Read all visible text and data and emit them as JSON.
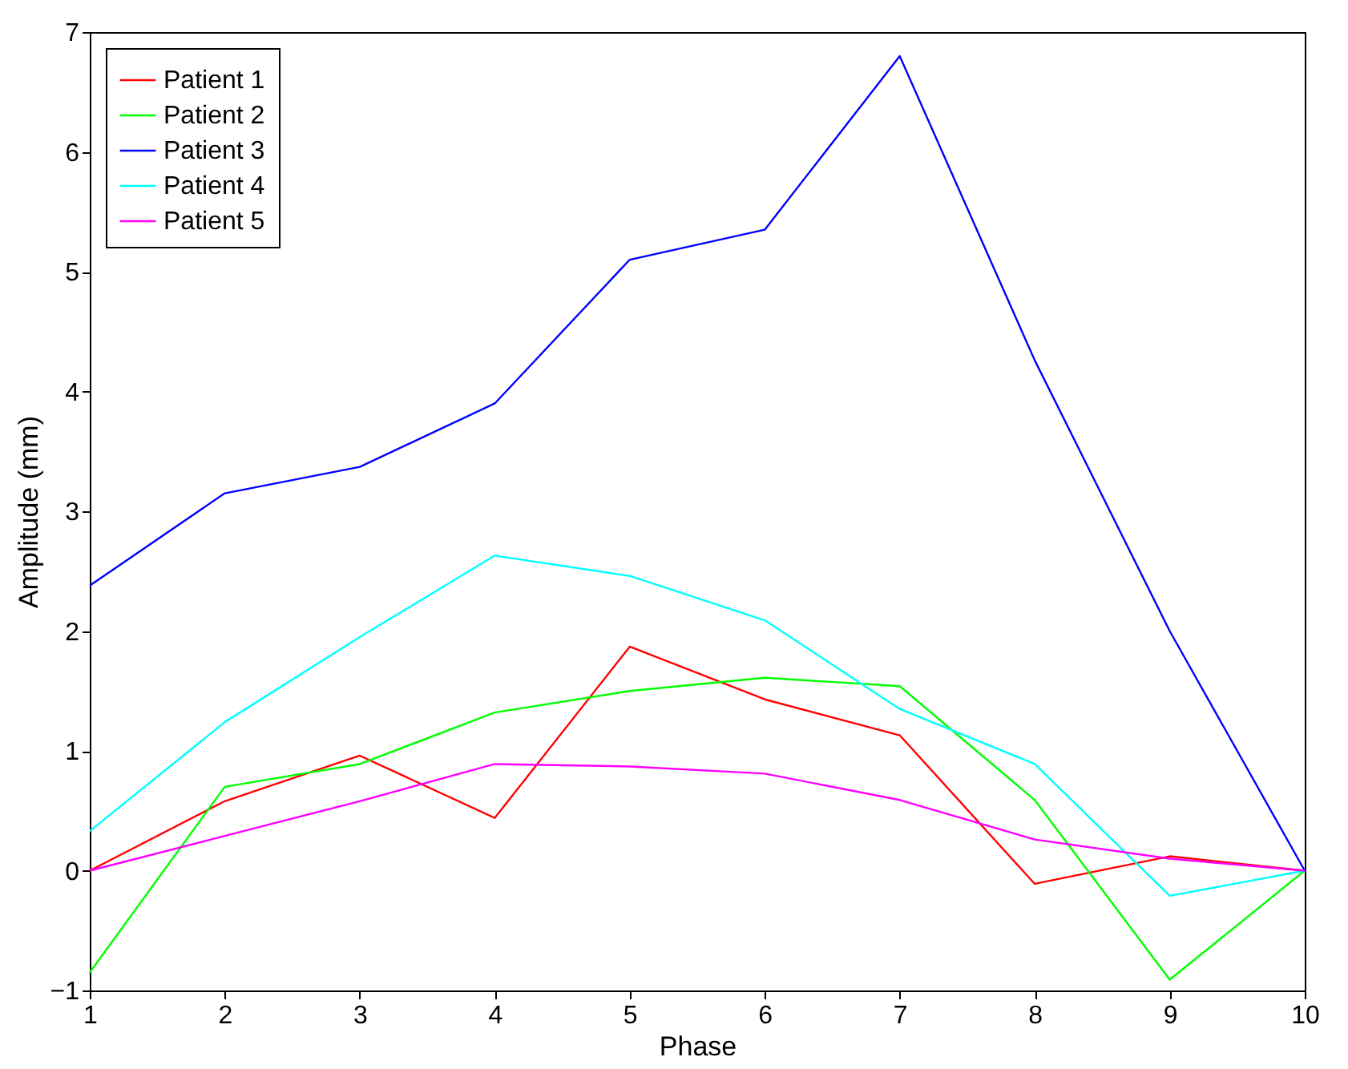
{
  "chart_data": {
    "type": "line",
    "xlabel": "Phase",
    "ylabel": "Amplitude (mm)",
    "x": [
      1,
      2,
      3,
      4,
      5,
      6,
      7,
      8,
      9,
      10
    ],
    "xlim": [
      1,
      10
    ],
    "xticks": [
      1,
      2,
      3,
      4,
      5,
      6,
      7,
      8,
      9,
      10
    ],
    "ylim": [
      -1,
      7
    ],
    "yticks": [
      -1,
      0,
      1,
      2,
      3,
      4,
      5,
      6,
      7
    ],
    "grid": false,
    "legend": "top left",
    "marker": "none",
    "line_style": "solid",
    "series": [
      {
        "name": "Patient 1",
        "color": "#ff0000",
        "values": [
          0,
          0.58,
          0.96,
          0.44,
          1.87,
          1.43,
          1.13,
          -0.11,
          0.12,
          0
        ]
      },
      {
        "name": "Patient 2",
        "color": "#00ff00",
        "values": [
          -0.85,
          0.7,
          0.89,
          1.32,
          1.5,
          1.61,
          1.54,
          0.59,
          -0.91,
          0
        ]
      },
      {
        "name": "Patient 3",
        "color": "#0000ff",
        "values": [
          2.38,
          3.15,
          3.37,
          3.9,
          5.1,
          5.35,
          6.8,
          4.26,
          2.0,
          0
        ]
      },
      {
        "name": "Patient 4",
        "color": "#00ffff",
        "values": [
          0.33,
          1.24,
          1.95,
          2.63,
          2.46,
          2.09,
          1.35,
          0.89,
          -0.21,
          0
        ]
      },
      {
        "name": "Patient 5",
        "color": "#ff00ff",
        "values": [
          0,
          0.29,
          0.58,
          0.89,
          0.87,
          0.81,
          0.59,
          0.26,
          0.1,
          0
        ]
      }
    ]
  }
}
